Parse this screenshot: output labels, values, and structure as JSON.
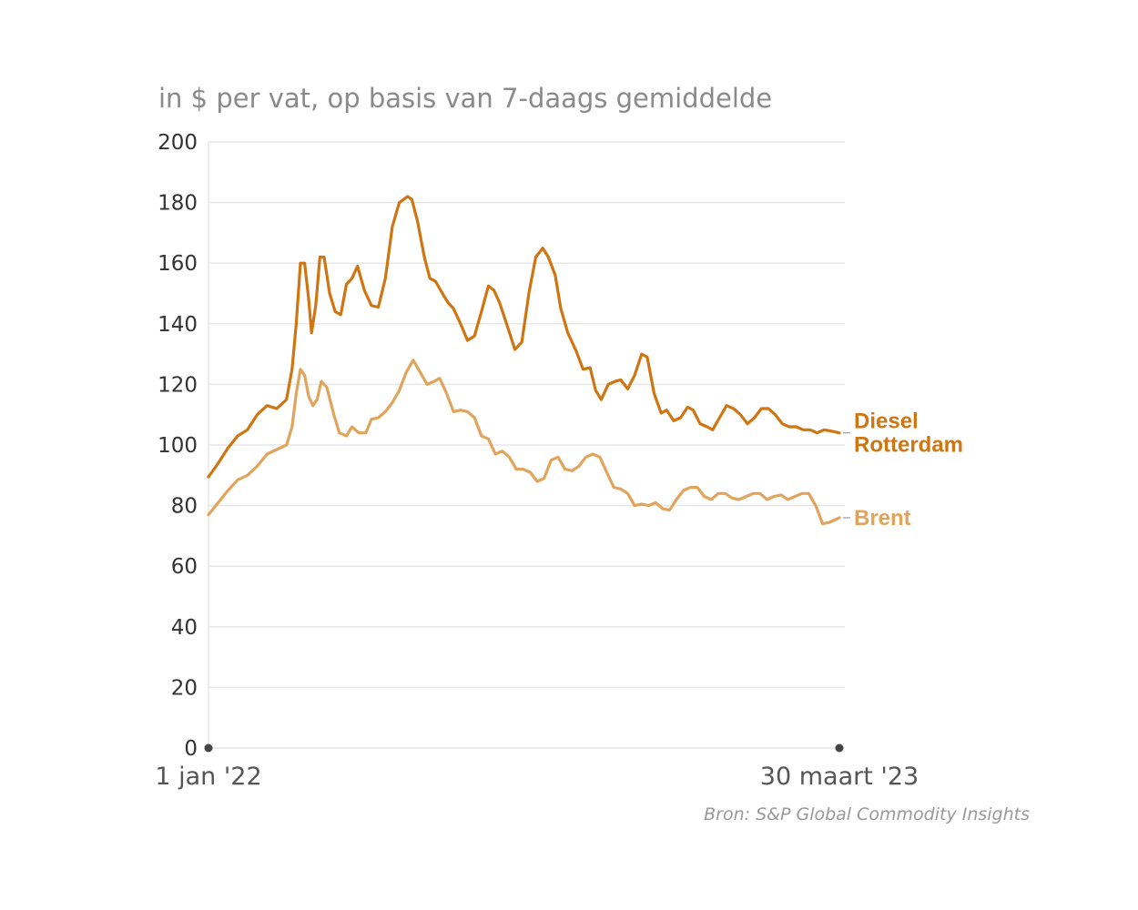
{
  "subtitle": "in $ per vat, op basis van 7-daags gemiddelde",
  "source": "Bron: S&P Global Commodity Insights",
  "colors": {
    "diesel": "#cf7511",
    "brent": "#e0a45c",
    "grid": "#e6e6e6",
    "axis_text": "#333333"
  },
  "chart_data": {
    "type": "line",
    "title": "",
    "xlabel": "",
    "ylabel": "",
    "ylim": [
      0,
      200
    ],
    "yticks": [
      0,
      20,
      40,
      60,
      80,
      100,
      120,
      140,
      160,
      180,
      200
    ],
    "xlim": [
      "2022-01-01",
      "2023-03-30"
    ],
    "xtick_labels": [
      "1 jan '22",
      "30 maart '23"
    ],
    "grid": true,
    "legend": "direct labels at line ends (right)",
    "series": [
      {
        "name": "Diesel Rotterdam",
        "label_lines": [
          "Diesel",
          "Rotterdam"
        ],
        "color": "#cf7511",
        "points": [
          [
            "2022-01-01",
            89.5
          ],
          [
            "2022-01-08",
            94
          ],
          [
            "2022-01-15",
            99
          ],
          [
            "2022-01-22",
            103
          ],
          [
            "2022-01-29",
            105
          ],
          [
            "2022-02-05",
            110
          ],
          [
            "2022-02-12",
            113
          ],
          [
            "2022-02-19",
            112
          ],
          [
            "2022-02-26",
            115
          ],
          [
            "2022-03-02",
            125
          ],
          [
            "2022-03-05",
            140
          ],
          [
            "2022-03-08",
            160
          ],
          [
            "2022-03-11",
            160
          ],
          [
            "2022-03-14",
            148
          ],
          [
            "2022-03-16",
            137
          ],
          [
            "2022-03-19",
            146
          ],
          [
            "2022-03-22",
            162
          ],
          [
            "2022-03-25",
            162
          ],
          [
            "2022-03-29",
            150
          ],
          [
            "2022-04-02",
            144
          ],
          [
            "2022-04-06",
            143
          ],
          [
            "2022-04-10",
            153
          ],
          [
            "2022-04-14",
            155
          ],
          [
            "2022-04-18",
            159
          ],
          [
            "2022-04-23",
            151
          ],
          [
            "2022-04-28",
            146
          ],
          [
            "2022-05-03",
            145.5
          ],
          [
            "2022-05-08",
            155
          ],
          [
            "2022-05-13",
            172
          ],
          [
            "2022-05-18",
            180
          ],
          [
            "2022-05-24",
            182
          ],
          [
            "2022-05-27",
            181
          ],
          [
            "2022-05-31",
            174
          ],
          [
            "2022-06-05",
            162
          ],
          [
            "2022-06-09",
            155
          ],
          [
            "2022-06-13",
            154
          ],
          [
            "2022-06-18",
            150
          ],
          [
            "2022-06-22",
            147
          ],
          [
            "2022-06-26",
            145
          ],
          [
            "2022-07-01",
            140
          ],
          [
            "2022-07-06",
            134.5
          ],
          [
            "2022-07-11",
            136
          ],
          [
            "2022-07-16",
            144
          ],
          [
            "2022-07-21",
            152.5
          ],
          [
            "2022-07-25",
            151
          ],
          [
            "2022-07-29",
            147
          ],
          [
            "2022-08-03",
            140
          ],
          [
            "2022-08-09",
            131.5
          ],
          [
            "2022-08-14",
            134
          ],
          [
            "2022-08-19",
            150
          ],
          [
            "2022-08-24",
            162
          ],
          [
            "2022-08-29",
            165
          ],
          [
            "2022-09-02",
            162
          ],
          [
            "2022-09-07",
            156
          ],
          [
            "2022-09-11",
            145
          ],
          [
            "2022-09-16",
            137
          ],
          [
            "2022-09-22",
            131
          ],
          [
            "2022-09-27",
            125
          ],
          [
            "2022-10-02",
            125.5
          ],
          [
            "2022-10-06",
            118
          ],
          [
            "2022-10-10",
            115
          ],
          [
            "2022-10-15",
            120
          ],
          [
            "2022-10-20",
            121
          ],
          [
            "2022-10-24",
            121.5
          ],
          [
            "2022-10-29",
            118.5
          ],
          [
            "2022-11-03",
            123
          ],
          [
            "2022-11-08",
            130
          ],
          [
            "2022-11-12",
            129
          ],
          [
            "2022-11-17",
            117
          ],
          [
            "2022-11-22",
            110.5
          ],
          [
            "2022-11-26",
            111.5
          ],
          [
            "2022-12-01",
            108
          ],
          [
            "2022-12-06",
            109
          ],
          [
            "2022-12-11",
            112.5
          ],
          [
            "2022-12-15",
            111.5
          ],
          [
            "2022-12-20",
            107
          ],
          [
            "2022-12-25",
            106
          ],
          [
            "2022-12-29",
            105
          ],
          [
            "2023-01-03",
            109
          ],
          [
            "2023-01-08",
            113
          ],
          [
            "2023-01-13",
            112
          ],
          [
            "2023-01-18",
            110
          ],
          [
            "2023-01-23",
            107
          ],
          [
            "2023-01-28",
            109
          ],
          [
            "2023-02-02",
            112
          ],
          [
            "2023-02-07",
            112
          ],
          [
            "2023-02-12",
            110
          ],
          [
            "2023-02-17",
            107
          ],
          [
            "2023-02-22",
            106
          ],
          [
            "2023-02-27",
            106
          ],
          [
            "2023-03-04",
            105
          ],
          [
            "2023-03-09",
            105
          ],
          [
            "2023-03-14",
            104
          ],
          [
            "2023-03-19",
            105
          ],
          [
            "2023-03-25",
            104.5
          ],
          [
            "2023-03-30",
            104
          ]
        ]
      },
      {
        "name": "Brent",
        "label_lines": [
          "Brent"
        ],
        "color": "#e0a45c",
        "points": [
          [
            "2022-01-01",
            77
          ],
          [
            "2022-01-08",
            81
          ],
          [
            "2022-01-15",
            85
          ],
          [
            "2022-01-22",
            88.5
          ],
          [
            "2022-01-29",
            90
          ],
          [
            "2022-02-05",
            93
          ],
          [
            "2022-02-12",
            97
          ],
          [
            "2022-02-19",
            98.5
          ],
          [
            "2022-02-26",
            100
          ],
          [
            "2022-03-02",
            106
          ],
          [
            "2022-03-05",
            117
          ],
          [
            "2022-03-08",
            125
          ],
          [
            "2022-03-11",
            123
          ],
          [
            "2022-03-14",
            116
          ],
          [
            "2022-03-17",
            113
          ],
          [
            "2022-03-20",
            115
          ],
          [
            "2022-03-23",
            121
          ],
          [
            "2022-03-27",
            119
          ],
          [
            "2022-04-01",
            110
          ],
          [
            "2022-04-05",
            104
          ],
          [
            "2022-04-10",
            103
          ],
          [
            "2022-04-14",
            106
          ],
          [
            "2022-04-19",
            104
          ],
          [
            "2022-04-24",
            104
          ],
          [
            "2022-04-28",
            108.5
          ],
          [
            "2022-05-03",
            109
          ],
          [
            "2022-05-08",
            111
          ],
          [
            "2022-05-13",
            114
          ],
          [
            "2022-05-18",
            118
          ],
          [
            "2022-05-23",
            124
          ],
          [
            "2022-05-28",
            128
          ],
          [
            "2022-06-02",
            124
          ],
          [
            "2022-06-07",
            120
          ],
          [
            "2022-06-12",
            121
          ],
          [
            "2022-06-16",
            122
          ],
          [
            "2022-06-21",
            117
          ],
          [
            "2022-06-26",
            111
          ],
          [
            "2022-07-01",
            111.5
          ],
          [
            "2022-07-06",
            111
          ],
          [
            "2022-07-11",
            109
          ],
          [
            "2022-07-16",
            103
          ],
          [
            "2022-07-21",
            102
          ],
          [
            "2022-07-26",
            97
          ],
          [
            "2022-07-31",
            98
          ],
          [
            "2022-08-05",
            96
          ],
          [
            "2022-08-10",
            92
          ],
          [
            "2022-08-15",
            92
          ],
          [
            "2022-08-20",
            91
          ],
          [
            "2022-08-25",
            88
          ],
          [
            "2022-08-30",
            89
          ],
          [
            "2022-09-04",
            95
          ],
          [
            "2022-09-09",
            96
          ],
          [
            "2022-09-14",
            92
          ],
          [
            "2022-09-19",
            91.5
          ],
          [
            "2022-09-24",
            93
          ],
          [
            "2022-09-29",
            96
          ],
          [
            "2022-10-04",
            97
          ],
          [
            "2022-10-09",
            96
          ],
          [
            "2022-10-14",
            91
          ],
          [
            "2022-10-19",
            86
          ],
          [
            "2022-10-24",
            85.5
          ],
          [
            "2022-10-29",
            84
          ],
          [
            "2022-11-03",
            80
          ],
          [
            "2022-11-08",
            80.5
          ],
          [
            "2022-11-13",
            80
          ],
          [
            "2022-11-18",
            81
          ],
          [
            "2022-11-23",
            79
          ],
          [
            "2022-11-28",
            78.5
          ],
          [
            "2022-12-03",
            82
          ],
          [
            "2022-12-08",
            85
          ],
          [
            "2022-12-13",
            86
          ],
          [
            "2022-12-18",
            86
          ],
          [
            "2022-12-23",
            83
          ],
          [
            "2022-12-28",
            82
          ],
          [
            "2023-01-02",
            84
          ],
          [
            "2023-01-07",
            84
          ],
          [
            "2023-01-12",
            82.5
          ],
          [
            "2023-01-17",
            82
          ],
          [
            "2023-01-22",
            83
          ],
          [
            "2023-01-27",
            84
          ],
          [
            "2023-02-01",
            84
          ],
          [
            "2023-02-06",
            82
          ],
          [
            "2023-02-11",
            83
          ],
          [
            "2023-02-16",
            83.5
          ],
          [
            "2023-02-21",
            82
          ],
          [
            "2023-02-26",
            83
          ],
          [
            "2023-03-03",
            84
          ],
          [
            "2023-03-08",
            84
          ],
          [
            "2023-03-13",
            80
          ],
          [
            "2023-03-18",
            74
          ],
          [
            "2023-03-23",
            74.5
          ],
          [
            "2023-03-30",
            76
          ]
        ]
      }
    ]
  }
}
